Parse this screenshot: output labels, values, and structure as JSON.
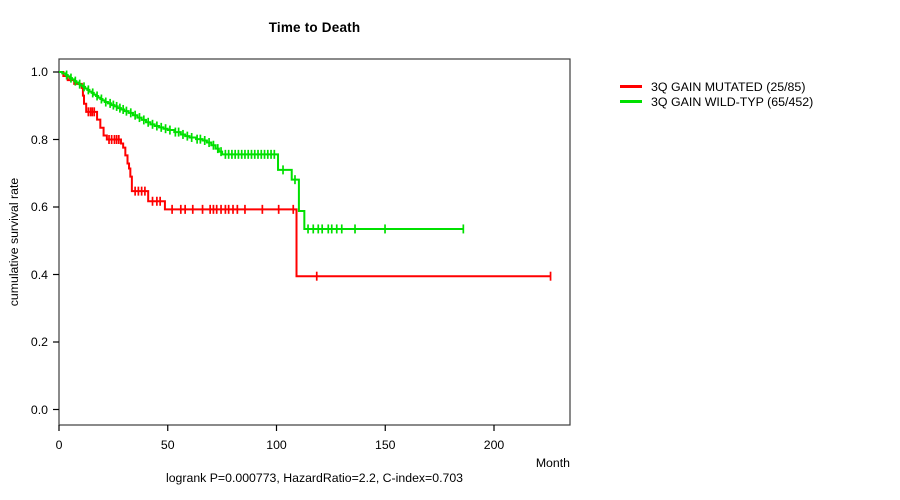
{
  "title": "Time to Death",
  "y_axis": {
    "label": "cumulative survival rate",
    "ticks": [
      {
        "label": "1.0",
        "value": 1.0
      },
      {
        "label": "0.8",
        "value": 0.8
      },
      {
        "label": "0.6",
        "value": 0.6
      },
      {
        "label": "0.4",
        "value": 0.4
      },
      {
        "label": "0.2",
        "value": 0.2
      },
      {
        "label": "0.0",
        "value": 0.0
      }
    ]
  },
  "x_axis": {
    "label": "Month",
    "ticks": [
      {
        "label": "0",
        "value": 0
      },
      {
        "label": "50",
        "value": 50
      },
      {
        "label": "100",
        "value": 100
      },
      {
        "label": "150",
        "value": 150
      },
      {
        "label": "200",
        "value": 200
      }
    ]
  },
  "annotation": "logrank P=0.000773, HazardRatio=2.2, C-index=0.703",
  "legend": {
    "items": [
      {
        "label": "3Q GAIN MUTATED (25/85)",
        "color": "#ff0000"
      },
      {
        "label": "3Q GAIN WILD-TYP (65/452)",
        "color": "#00e000"
      }
    ]
  },
  "colors": {
    "mutated": "#ff0000",
    "wild_type": "#00e000",
    "box": "#3d3d3d",
    "text": "#000000"
  },
  "chart_data": {
    "type": "line",
    "subtype": "kaplan_meier_step",
    "title": "Time to Death",
    "xlabel": "Month",
    "ylabel": "cumulative survival rate",
    "xlim": [
      0,
      235
    ],
    "ylim": [
      0,
      1.04
    ],
    "grid": false,
    "legend_position": "right-outside-top",
    "annotation": "logrank P=0.000773, HazardRatio=2.2, C-index=0.703",
    "statistics": {
      "logrank_p": 0.000773,
      "hazard_ratio": 2.2,
      "c_index": 0.703
    },
    "series": [
      {
        "name": "3Q GAIN MUTATED (25/85)",
        "events": 25,
        "n": 85,
        "color": "#ff0000",
        "end_month": 226,
        "steps": [
          [
            0,
            1.0
          ],
          [
            2,
            0.988
          ],
          [
            4,
            0.976
          ],
          [
            7,
            0.965
          ],
          [
            10.5,
            0.953
          ],
          [
            11,
            0.93
          ],
          [
            11.5,
            0.906
          ],
          [
            12.5,
            0.882
          ],
          [
            17.5,
            0.859
          ],
          [
            19,
            0.835
          ],
          [
            20.5,
            0.812
          ],
          [
            22,
            0.8
          ],
          [
            28.5,
            0.788
          ],
          [
            29.5,
            0.776
          ],
          [
            30.5,
            0.753
          ],
          [
            31.5,
            0.729
          ],
          [
            32.2,
            0.714
          ],
          [
            32.8,
            0.69
          ],
          [
            33.5,
            0.647
          ],
          [
            41,
            0.617
          ],
          [
            48.7,
            0.593
          ],
          [
            109.2,
            0.395
          ]
        ],
        "censor_months": [
          13.5,
          14.5,
          15.3,
          16.2,
          23,
          24.2,
          25.5,
          26.5,
          27.5,
          35,
          36.5,
          38,
          39.5,
          43,
          45,
          46.5,
          52,
          56,
          58,
          61.5,
          66,
          69.5,
          71,
          72.5,
          74.5,
          76.5,
          78,
          80,
          82,
          85.5,
          93.5,
          101,
          107.7,
          118.5,
          226
        ]
      },
      {
        "name": "3Q GAIN WILD-TYP (65/452)",
        "events": 65,
        "n": 452,
        "color": "#00e000",
        "end_month": 186,
        "steps": [
          [
            0,
            1.0
          ],
          [
            1.5,
            0.996
          ],
          [
            3,
            0.991
          ],
          [
            4,
            0.987
          ],
          [
            5,
            0.982
          ],
          [
            6,
            0.978
          ],
          [
            7,
            0.973
          ],
          [
            8,
            0.969
          ],
          [
            9,
            0.964
          ],
          [
            10,
            0.96
          ],
          [
            11,
            0.956
          ],
          [
            12,
            0.951
          ],
          [
            13,
            0.947
          ],
          [
            14,
            0.942
          ],
          [
            15,
            0.938
          ],
          [
            16,
            0.933
          ],
          [
            17,
            0.929
          ],
          [
            18,
            0.924
          ],
          [
            19,
            0.92
          ],
          [
            20,
            0.916
          ],
          [
            21,
            0.911
          ],
          [
            22.5,
            0.907
          ],
          [
            24,
            0.902
          ],
          [
            25.5,
            0.898
          ],
          [
            27,
            0.893
          ],
          [
            28.5,
            0.889
          ],
          [
            30,
            0.884
          ],
          [
            32,
            0.879
          ],
          [
            34,
            0.872
          ],
          [
            36,
            0.865
          ],
          [
            38,
            0.858
          ],
          [
            40,
            0.851
          ],
          [
            42,
            0.845
          ],
          [
            44,
            0.84
          ],
          [
            46,
            0.836
          ],
          [
            48,
            0.832
          ],
          [
            50,
            0.828
          ],
          [
            53,
            0.822
          ],
          [
            56,
            0.815
          ],
          [
            58,
            0.81
          ],
          [
            60,
            0.806
          ],
          [
            63,
            0.801
          ],
          [
            66,
            0.797
          ],
          [
            68,
            0.791
          ],
          [
            70,
            0.783
          ],
          [
            72,
            0.773
          ],
          [
            73.5,
            0.764
          ],
          [
            75,
            0.756
          ],
          [
            100.7,
            0.71
          ],
          [
            107,
            0.681
          ],
          [
            110.3,
            0.588
          ],
          [
            112.8,
            0.535
          ]
        ],
        "censor_months": [
          3.5,
          5.5,
          7.5,
          9.5,
          11.5,
          13.5,
          15.5,
          17.5,
          19.5,
          21.5,
          23.5,
          25,
          26.5,
          28,
          29.5,
          31,
          33,
          35,
          37,
          39,
          41,
          43,
          45,
          47,
          49,
          51,
          53.5,
          55,
          57,
          59,
          61,
          63.5,
          65,
          67,
          69,
          71,
          73,
          74.5,
          76.5,
          78,
          79.5,
          81,
          82.5,
          84,
          85.5,
          87,
          88.5,
          90,
          91.5,
          93,
          94.5,
          96,
          97.5,
          99,
          103,
          108.5,
          114.5,
          116.9,
          119.2,
          121,
          123.8,
          125.4,
          127.7,
          130,
          136.1,
          149.9,
          185.9
        ]
      }
    ]
  }
}
